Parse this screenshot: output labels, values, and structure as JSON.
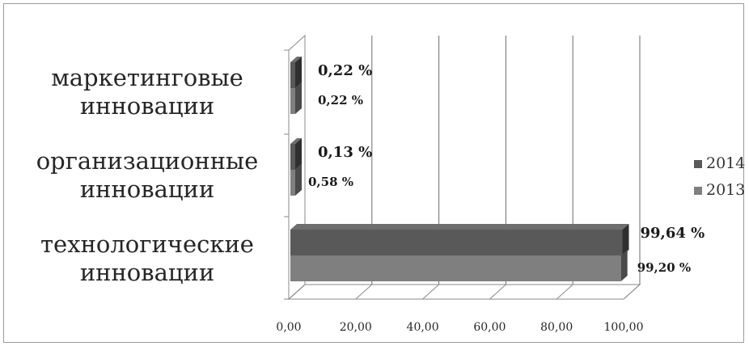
{
  "chart_data": {
    "type": "bar",
    "orientation": "horizontal",
    "three_d": true,
    "categories": [
      "маркетинговые инновации",
      "организационные инновации",
      "технологические инновации"
    ],
    "category_lines": [
      [
        "маркетинговые",
        "инновации"
      ],
      [
        "организационные",
        "инновации"
      ],
      [
        "технологические",
        "инновации"
      ]
    ],
    "series": [
      {
        "name": "2014",
        "values": [
          0.22,
          0.13,
          99.64
        ],
        "labels": [
          "0,22 %",
          "0,13 %",
          "99,64 %"
        ],
        "color": "#595959",
        "top_color": "#6e6e6e",
        "side_color": "#2f2f2f"
      },
      {
        "name": "2013",
        "values": [
          0.22,
          0.58,
          99.2
        ],
        "labels": [
          "0,22 %",
          "0,58 %",
          "99,20 %"
        ],
        "color": "#7f7f7f",
        "top_color": "#929292",
        "side_color": "#4a4a4a"
      }
    ],
    "x_ticks": [
      0,
      20,
      40,
      60,
      80,
      100
    ],
    "x_tick_labels": [
      "0,00",
      "20,00",
      "40,00",
      "60,00",
      "80,00",
      "100,00"
    ],
    "xlim": [
      0,
      100
    ],
    "grid": true,
    "legend": "right",
    "title": "",
    "xlabel": "",
    "ylabel": ""
  }
}
